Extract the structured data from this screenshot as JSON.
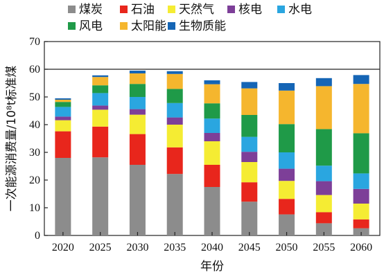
{
  "chart_data": {
    "type": "bar",
    "stacked": true,
    "categories": [
      "2020",
      "2025",
      "2030",
      "2035",
      "2040",
      "2045",
      "2050",
      "2055",
      "2060"
    ],
    "series": [
      {
        "name": "煤炭",
        "color": "#8c8c8c",
        "values": [
          28,
          28.2,
          25.5,
          22.2,
          17.5,
          12.2,
          7.6,
          4.4,
          2.6
        ]
      },
      {
        "name": "石油",
        "color": "#e8261c",
        "values": [
          9.6,
          11.1,
          11.1,
          9.6,
          8,
          7,
          5.6,
          4,
          3.2
        ]
      },
      {
        "name": "天然气",
        "color": "#f5ec33",
        "values": [
          4,
          6.1,
          7,
          8.2,
          8.5,
          7.3,
          6.5,
          6.2,
          5.7
        ]
      },
      {
        "name": "核电",
        "color": "#7d3f98",
        "values": [
          1.3,
          1.5,
          2,
          2.6,
          3,
          3.7,
          4.4,
          5,
          5.3
        ]
      },
      {
        "name": "水电",
        "color": "#2aa6e0",
        "values": [
          3.5,
          4.5,
          4.4,
          5.2,
          5.2,
          5.4,
          5.9,
          5.6,
          5.6
        ]
      },
      {
        "name": "风电",
        "color": "#1f9a48",
        "values": [
          1.8,
          2.8,
          4.7,
          5.1,
          5.5,
          7.9,
          10.2,
          13.2,
          14.5
        ]
      },
      {
        "name": "太阳能",
        "color": "#f5b62e",
        "values": [
          0.8,
          3,
          3.8,
          5.4,
          6.9,
          9.6,
          12.1,
          15.5,
          17.8
        ]
      },
      {
        "name": "生物质能",
        "color": "#1565b5",
        "values": [
          0.5,
          0.6,
          1,
          1,
          1.4,
          2.3,
          2.7,
          2.9,
          3.2
        ]
      }
    ],
    "title": "",
    "xlabel": "年份",
    "ylabel": "一次能源消费量/10⁸t标准煤",
    "ylim": [
      0,
      70
    ],
    "yticks": [
      0,
      10,
      20,
      30,
      40,
      50,
      60,
      70
    ],
    "grid": false,
    "legend": "top"
  }
}
